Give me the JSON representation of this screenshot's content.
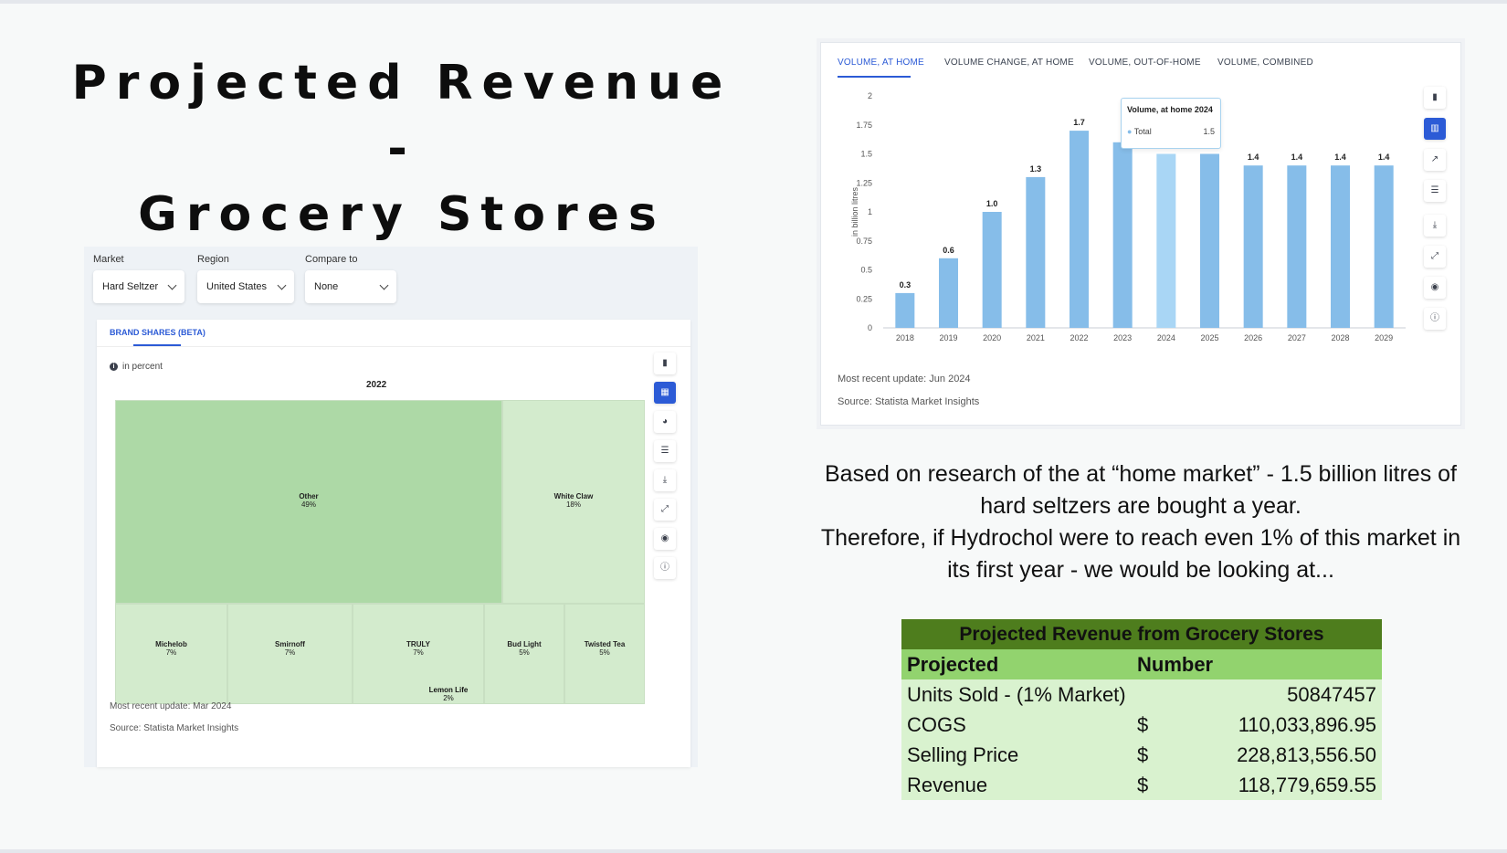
{
  "slide": {
    "title_line1": "Projected Revenue -",
    "title_line2": "Grocery Stores"
  },
  "left_panel": {
    "filters": [
      {
        "label": "Market",
        "value": "Hard Seltzer"
      },
      {
        "label": "Region",
        "value": "United States"
      },
      {
        "label": "Compare to",
        "value": "None"
      }
    ],
    "tab": "BRAND SHARES (BETA)",
    "unit_note": "in percent",
    "year": "2022",
    "footer_update": "Most recent update: Mar 2024",
    "footer_source": "Source: Statista Market Insights",
    "tools": [
      "bar-chart-icon",
      "treemap-icon",
      "pie-chart-icon",
      "table-icon",
      "download-icon",
      "expand-icon",
      "hide-icon",
      "info-icon"
    ]
  },
  "right_panel": {
    "tabs": [
      "VOLUME, AT HOME",
      "VOLUME CHANGE, AT HOME",
      "VOLUME, OUT-OF-HOME",
      "VOLUME, COMBINED"
    ],
    "footer_update": "Most recent update: Jun 2024",
    "footer_source": "Source: Statista Market Insights",
    "tooltip": {
      "title": "Volume, at home 2024",
      "series": "Total",
      "value": "1.5"
    },
    "tools": [
      "bar-chart-icon",
      "stacked-bar-icon",
      "line-chart-icon",
      "table-icon",
      "download-icon",
      "expand-icon",
      "hide-icon",
      "info-icon"
    ]
  },
  "chart_data": [
    {
      "type": "heatmap",
      "title": "2022",
      "unit": "in percent",
      "categories": [
        "Other",
        "White Claw",
        "Michelob",
        "Smirnoff",
        "TRULY",
        "Bud Light",
        "Twisted Tea",
        "Lemon Life"
      ],
      "values": [
        49,
        18,
        7,
        7,
        7,
        5,
        5,
        2
      ],
      "labels": [
        "49%",
        "18%",
        "7%",
        "7%",
        "7%",
        "5%",
        "5%",
        "2%"
      ],
      "colors": {
        "large": "#add9a6",
        "small": "#d3ebcd"
      }
    },
    {
      "type": "bar",
      "categories": [
        "2018",
        "2019",
        "2020",
        "2021",
        "2022",
        "2023",
        "2024",
        "2025",
        "2026",
        "2027",
        "2028",
        "2029"
      ],
      "values": [
        0.3,
        0.6,
        1.0,
        1.3,
        1.7,
        1.6,
        1.5,
        1.5,
        1.4,
        1.4,
        1.4,
        1.4
      ],
      "data_labels": [
        "0.3",
        "0.6",
        "1.0",
        "1.3",
        "1.7",
        "",
        "",
        "1.5",
        "1.4",
        "1.4",
        "1.4",
        "1.4"
      ],
      "ylabel": "in billion litres",
      "yticks": [
        "0",
        "0.25",
        "0.5",
        "0.75",
        "1",
        "1.25",
        "1.5",
        "1.75",
        "2"
      ],
      "ylim": [
        0,
        2
      ],
      "highlight_index": 6,
      "colors": {
        "bar": "#86bde9",
        "highlight": "#a9d6f5"
      }
    }
  ],
  "body_text": {
    "line1": "Based on research of the at “home market” - 1.5 billion litres of",
    "line2": "hard seltzers are bought a year.",
    "line3": "Therefore, if Hydrochol were to reach even 1% of this market in",
    "line4": "its first year - we would be looking at..."
  },
  "revenue_table": {
    "title": "Projected Revenue from Grocery Stores",
    "headers": [
      "Projected",
      "Number"
    ],
    "rows": [
      {
        "label": "Units Sold - (1% Market)",
        "currency": "",
        "value": "50847457"
      },
      {
        "label": "COGS",
        "currency": "$",
        "value": "110,033,896.95"
      },
      {
        "label": "Selling Price",
        "currency": "$",
        "value": "228,813,556.50"
      },
      {
        "label": "Revenue",
        "currency": "$",
        "value": "118,779,659.55"
      }
    ]
  }
}
